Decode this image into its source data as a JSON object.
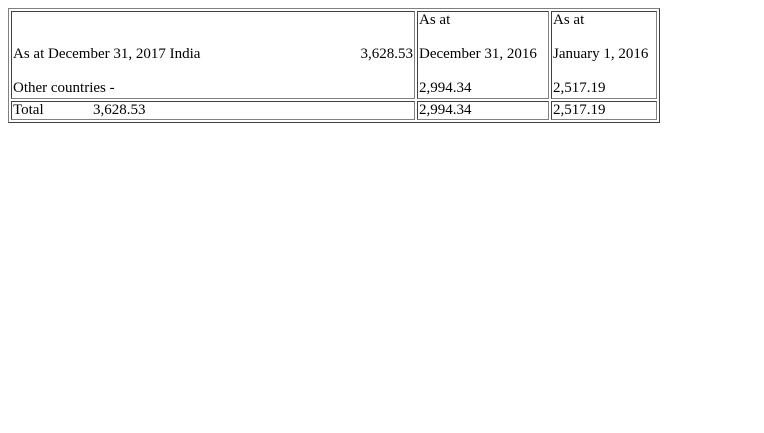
{
  "table": {
    "header": {
      "col1_line1": "As at December 31, 2017 India",
      "col1_line1_value": "3,628.53",
      "col1_line2": "Other countries -",
      "col2_line1": "As at",
      "col2_line2": "December 31, 2016",
      "col2_line3": "2,994.34",
      "col3_line1": "As at",
      "col3_line2": "January 1, 2016",
      "col3_line3": "2,517.19"
    },
    "total": {
      "label": "Total",
      "value_2017": "3,628.53",
      "value_2016": "2,994.34",
      "value_jan2016": "2,517.19"
    }
  }
}
